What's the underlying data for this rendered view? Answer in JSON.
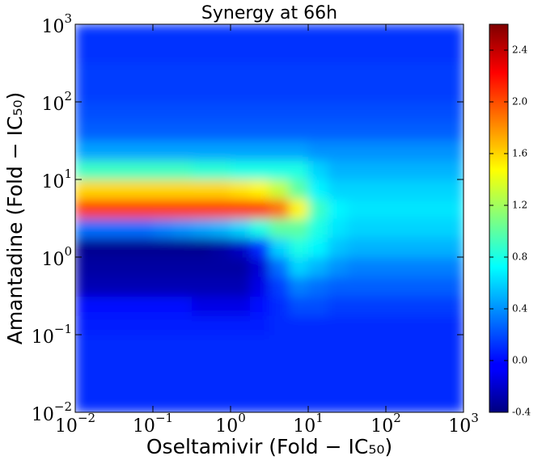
{
  "chart_data": {
    "type": "heatmap",
    "title": "Synergy at 66h",
    "xlabel": "Oseltamivir (Fold − IC₅₀)",
    "ylabel": "Amantadine (Fold − IC₅₀)",
    "xscale": "log",
    "yscale": "log",
    "xlim": [
      0.01,
      1000
    ],
    "ylim": [
      0.01,
      1000
    ],
    "xticks": [
      {
        "value": 0.01,
        "label": "10",
        "exponent": "−2"
      },
      {
        "value": 0.1,
        "label": "10",
        "exponent": "−1"
      },
      {
        "value": 1,
        "label": "10",
        "exponent": "0"
      },
      {
        "value": 10,
        "label": "10",
        "exponent": "1"
      },
      {
        "value": 100,
        "label": "10",
        "exponent": "2"
      },
      {
        "value": 1000,
        "label": "10",
        "exponent": "3"
      }
    ],
    "yticks": [
      {
        "value": 0.01,
        "label": "10",
        "exponent": "−2"
      },
      {
        "value": 0.1,
        "label": "10",
        "exponent": "−1"
      },
      {
        "value": 1,
        "label": "10",
        "exponent": "0"
      },
      {
        "value": 10,
        "label": "10",
        "exponent": "1"
      },
      {
        "value": 100,
        "label": "10",
        "exponent": "2"
      },
      {
        "value": 1000,
        "label": "10",
        "exponent": "3"
      }
    ],
    "colormap": "jet",
    "clim": [
      -0.4,
      2.6
    ],
    "cticks": [
      -0.4,
      {
        "value": 0,
        "label": "0.0"
      },
      0.4,
      0.8,
      1.2,
      1.6,
      {
        "value": 2,
        "label": "2.0"
      },
      2.4
    ],
    "x": [
      0.0133,
      0.0237,
      0.0422,
      0.075,
      0.133,
      0.237,
      0.422,
      0.75,
      1.33,
      2.37,
      4.22,
      7.5,
      13.3,
      23.7,
      42.2,
      75,
      133,
      237,
      422,
      750
    ],
    "y": [
      0.0133,
      0.0237,
      0.0422,
      0.075,
      0.133,
      0.237,
      0.422,
      0.75,
      1.33,
      2.37,
      4.22,
      7.5,
      13.3,
      23.7,
      42.2,
      75,
      133,
      237,
      422,
      750
    ],
    "z": [
      [
        0.1,
        0.1,
        0.1,
        0.1,
        0.1,
        0.1,
        0.1,
        0.1,
        0.1,
        0.1,
        0.1,
        0.1,
        0.1,
        0.1,
        0.1,
        0.1,
        0.1,
        0.1,
        0.1,
        0.1
      ],
      [
        0.1,
        0.1,
        0.1,
        0.1,
        0.1,
        0.1,
        0.1,
        0.1,
        0.1,
        0.1,
        0.1,
        0.1,
        0.1,
        0.1,
        0.1,
        0.1,
        0.1,
        0.1,
        0.1,
        0.1
      ],
      [
        0.1,
        0.1,
        0.1,
        0.1,
        0.1,
        0.1,
        0.1,
        0.1,
        0.1,
        0.1,
        0.1,
        0.1,
        0.1,
        0.1,
        0.1,
        0.1,
        0.1,
        0.1,
        0.1,
        0.1
      ],
      [
        0.1,
        0.1,
        0.1,
        0.1,
        0.1,
        0.1,
        0.1,
        0.1,
        0.1,
        0.1,
        0.1,
        0.1,
        0.1,
        0.1,
        0.1,
        0.1,
        0.1,
        0.1,
        0.1,
        0.1
      ],
      [
        0.05,
        0.05,
        0.05,
        0.05,
        0.05,
        0.05,
        0.05,
        0.05,
        0.05,
        0.05,
        0.1,
        0.1,
        0.1,
        0.1,
        0.1,
        0.1,
        0.1,
        0.1,
        0.1,
        0.1
      ],
      [
        0,
        0,
        0,
        0,
        0,
        0,
        -0.1,
        -0.1,
        -0.1,
        0,
        0.1,
        0.2,
        0.2,
        0.15,
        0.15,
        0.15,
        0.15,
        0.15,
        0.15,
        0.15
      ],
      [
        -0.25,
        -0.25,
        -0.25,
        -0.25,
        -0.25,
        -0.25,
        -0.25,
        -0.25,
        -0.25,
        -0.1,
        0.15,
        0.35,
        0.3,
        0.25,
        0.25,
        0.25,
        0.25,
        0.25,
        0.25,
        0.25
      ],
      [
        -0.3,
        -0.3,
        -0.3,
        -0.3,
        -0.3,
        -0.3,
        -0.3,
        -0.3,
        -0.3,
        -0.15,
        0.3,
        0.6,
        0.5,
        0.4,
        0.35,
        0.35,
        0.35,
        0.35,
        0.35,
        0.35
      ],
      [
        -0.35,
        -0.35,
        -0.35,
        -0.35,
        -0.35,
        -0.35,
        -0.35,
        -0.3,
        -0.2,
        0.1,
        0.6,
        0.8,
        0.7,
        0.55,
        0.5,
        0.5,
        0.5,
        0.5,
        0.5,
        0.5
      ],
      [
        0.3,
        0.3,
        0.3,
        0.3,
        0.35,
        0.4,
        0.45,
        0.5,
        0.6,
        0.8,
        1.0,
        1.0,
        0.8,
        0.65,
        0.6,
        0.6,
        0.6,
        0.6,
        0.6,
        0.6
      ],
      [
        2.05,
        2.05,
        2.05,
        2.05,
        2.05,
        2.05,
        2.05,
        2.05,
        2.05,
        2.05,
        1.9,
        1.5,
        0.9,
        0.7,
        0.65,
        0.65,
        0.65,
        0.65,
        0.65,
        0.65
      ],
      [
        1.6,
        1.6,
        1.6,
        1.6,
        1.6,
        1.6,
        1.6,
        1.6,
        1.55,
        1.5,
        1.3,
        1.0,
        0.7,
        0.6,
        0.6,
        0.6,
        0.6,
        0.6,
        0.6,
        0.6
      ],
      [
        0.9,
        0.9,
        0.9,
        0.9,
        0.9,
        0.9,
        0.85,
        0.85,
        0.8,
        0.8,
        0.8,
        0.8,
        0.6,
        0.5,
        0.5,
        0.5,
        0.5,
        0.5,
        0.5,
        0.5
      ],
      [
        0.45,
        0.45,
        0.45,
        0.45,
        0.45,
        0.45,
        0.45,
        0.45,
        0.45,
        0.45,
        0.45,
        0.45,
        0.4,
        0.4,
        0.4,
        0.4,
        0.4,
        0.4,
        0.4,
        0.4
      ],
      [
        0.25,
        0.25,
        0.25,
        0.25,
        0.25,
        0.25,
        0.25,
        0.25,
        0.25,
        0.25,
        0.25,
        0.25,
        0.25,
        0.25,
        0.25,
        0.25,
        0.25,
        0.25,
        0.25,
        0.25
      ],
      [
        0.2,
        0.2,
        0.2,
        0.2,
        0.2,
        0.2,
        0.2,
        0.2,
        0.2,
        0.2,
        0.2,
        0.2,
        0.2,
        0.2,
        0.2,
        0.2,
        0.2,
        0.2,
        0.2,
        0.2
      ],
      [
        0.15,
        0.15,
        0.15,
        0.15,
        0.15,
        0.15,
        0.15,
        0.15,
        0.15,
        0.15,
        0.15,
        0.15,
        0.15,
        0.15,
        0.15,
        0.15,
        0.15,
        0.15,
        0.15,
        0.15
      ],
      [
        0.15,
        0.15,
        0.15,
        0.15,
        0.15,
        0.15,
        0.15,
        0.15,
        0.15,
        0.15,
        0.15,
        0.15,
        0.15,
        0.15,
        0.15,
        0.15,
        0.15,
        0.15,
        0.15,
        0.15
      ],
      [
        0.12,
        0.12,
        0.12,
        0.12,
        0.12,
        0.12,
        0.12,
        0.12,
        0.12,
        0.12,
        0.12,
        0.12,
        0.12,
        0.12,
        0.12,
        0.12,
        0.12,
        0.12,
        0.12,
        0.12
      ],
      [
        0.12,
        0.12,
        0.12,
        0.12,
        0.12,
        0.12,
        0.12,
        0.12,
        0.12,
        0.12,
        0.12,
        0.12,
        0.12,
        0.12,
        0.12,
        0.12,
        0.12,
        0.12,
        0.12,
        0.12
      ]
    ]
  }
}
